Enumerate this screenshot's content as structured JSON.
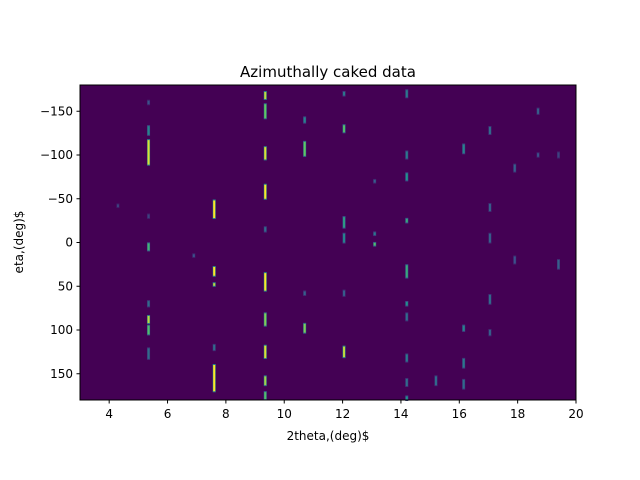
{
  "chart_data": {
    "type": "heatmap",
    "title": "Azimuthally caked data",
    "xlabel": "2theta,(deg)$",
    "ylabel": "eta,(deg)$",
    "xlim": [
      3,
      20
    ],
    "ylim": [
      180,
      -180
    ],
    "xticks": [
      4,
      6,
      8,
      10,
      12,
      14,
      16,
      18,
      20
    ],
    "yticks": [
      -150,
      -100,
      -50,
      0,
      50,
      100,
      150
    ],
    "ytick_labels": [
      "−150",
      "−100",
      "−50",
      "0",
      "50",
      "100",
      "150"
    ],
    "colormap": "viridis",
    "background_color": "#440154",
    "grid": false,
    "spots": [
      {
        "x": 5.35,
        "y": -103,
        "h": 28,
        "v": 0.95
      },
      {
        "x": 5.35,
        "y": -128,
        "h": 10,
        "v": 0.45
      },
      {
        "x": 5.35,
        "y": -160,
        "h": 4,
        "v": 0.25
      },
      {
        "x": 5.35,
        "y": -30,
        "h": 4,
        "v": 0.2
      },
      {
        "x": 5.35,
        "y": 5,
        "h": 8,
        "v": 0.65
      },
      {
        "x": 5.35,
        "y": 70,
        "h": 6,
        "v": 0.35
      },
      {
        "x": 5.35,
        "y": 88,
        "h": 8,
        "v": 0.9
      },
      {
        "x": 5.35,
        "y": 100,
        "h": 10,
        "v": 0.7
      },
      {
        "x": 5.35,
        "y": 127,
        "h": 12,
        "v": 0.35
      },
      {
        "x": 4.3,
        "y": -42,
        "h": 3,
        "v": 0.2
      },
      {
        "x": 6.9,
        "y": 15,
        "h": 3,
        "v": 0.25
      },
      {
        "x": 7.6,
        "y": -38,
        "h": 20,
        "v": 1.0
      },
      {
        "x": 7.6,
        "y": 33,
        "h": 10,
        "v": 1.0
      },
      {
        "x": 7.6,
        "y": 48,
        "h": 3,
        "v": 0.9
      },
      {
        "x": 7.6,
        "y": 155,
        "h": 30,
        "v": 1.0
      },
      {
        "x": 7.6,
        "y": 120,
        "h": 6,
        "v": 0.35
      },
      {
        "x": 9.35,
        "y": -168,
        "h": 8,
        "v": 0.9
      },
      {
        "x": 9.35,
        "y": -150,
        "h": 16,
        "v": 0.75
      },
      {
        "x": 9.35,
        "y": -102,
        "h": 14,
        "v": 0.95
      },
      {
        "x": 9.35,
        "y": -58,
        "h": 16,
        "v": 1.0
      },
      {
        "x": 9.35,
        "y": -15,
        "h": 5,
        "v": 0.35
      },
      {
        "x": 9.35,
        "y": 45,
        "h": 20,
        "v": 1.0
      },
      {
        "x": 9.35,
        "y": 88,
        "h": 14,
        "v": 0.8
      },
      {
        "x": 9.35,
        "y": 125,
        "h": 14,
        "v": 0.95
      },
      {
        "x": 9.35,
        "y": 158,
        "h": 10,
        "v": 0.85
      },
      {
        "x": 9.35,
        "y": 175,
        "h": 8,
        "v": 0.7
      },
      {
        "x": 10.7,
        "y": -140,
        "h": 6,
        "v": 0.45
      },
      {
        "x": 10.7,
        "y": -107,
        "h": 16,
        "v": 0.75
      },
      {
        "x": 10.7,
        "y": 98,
        "h": 10,
        "v": 0.8
      },
      {
        "x": 10.7,
        "y": 58,
        "h": 4,
        "v": 0.3
      },
      {
        "x": 12.05,
        "y": -170,
        "h": 4,
        "v": 0.4
      },
      {
        "x": 12.05,
        "y": -130,
        "h": 8,
        "v": 0.7
      },
      {
        "x": 12.05,
        "y": -23,
        "h": 12,
        "v": 0.55
      },
      {
        "x": 12.05,
        "y": -5,
        "h": 10,
        "v": 0.45
      },
      {
        "x": 12.05,
        "y": 58,
        "h": 6,
        "v": 0.3
      },
      {
        "x": 12.05,
        "y": 125,
        "h": 12,
        "v": 0.9
      },
      {
        "x": 13.1,
        "y": -70,
        "h": 3,
        "v": 0.3
      },
      {
        "x": 13.1,
        "y": -10,
        "h": 3,
        "v": 0.4
      },
      {
        "x": 13.1,
        "y": 2,
        "h": 3,
        "v": 0.7
      },
      {
        "x": 14.2,
        "y": -170,
        "h": 8,
        "v": 0.4
      },
      {
        "x": 14.2,
        "y": -100,
        "h": 8,
        "v": 0.4
      },
      {
        "x": 14.2,
        "y": -75,
        "h": 8,
        "v": 0.5
      },
      {
        "x": 14.2,
        "y": -25,
        "h": 4,
        "v": 0.6
      },
      {
        "x": 14.2,
        "y": 33,
        "h": 14,
        "v": 0.6
      },
      {
        "x": 14.2,
        "y": 70,
        "h": 4,
        "v": 0.5
      },
      {
        "x": 14.2,
        "y": 85,
        "h": 8,
        "v": 0.35
      },
      {
        "x": 14.2,
        "y": 132,
        "h": 8,
        "v": 0.4
      },
      {
        "x": 14.2,
        "y": 160,
        "h": 8,
        "v": 0.35
      },
      {
        "x": 14.2,
        "y": 178,
        "h": 4,
        "v": 0.5
      },
      {
        "x": 15.2,
        "y": 158,
        "h": 10,
        "v": 0.35
      },
      {
        "x": 16.15,
        "y": -107,
        "h": 10,
        "v": 0.45
      },
      {
        "x": 16.15,
        "y": 98,
        "h": 6,
        "v": 0.45
      },
      {
        "x": 16.15,
        "y": 138,
        "h": 10,
        "v": 0.4
      },
      {
        "x": 16.15,
        "y": 162,
        "h": 10,
        "v": 0.35
      },
      {
        "x": 17.05,
        "y": -128,
        "h": 8,
        "v": 0.35
      },
      {
        "x": 17.05,
        "y": -40,
        "h": 8,
        "v": 0.3
      },
      {
        "x": 17.05,
        "y": -5,
        "h": 10,
        "v": 0.3
      },
      {
        "x": 17.05,
        "y": 65,
        "h": 10,
        "v": 0.35
      },
      {
        "x": 17.05,
        "y": 103,
        "h": 6,
        "v": 0.3
      },
      {
        "x": 17.9,
        "y": -85,
        "h": 8,
        "v": 0.3
      },
      {
        "x": 17.9,
        "y": 20,
        "h": 8,
        "v": 0.25
      },
      {
        "x": 18.7,
        "y": -150,
        "h": 6,
        "v": 0.3
      },
      {
        "x": 18.7,
        "y": -100,
        "h": 4,
        "v": 0.25
      },
      {
        "x": 19.4,
        "y": 25,
        "h": 10,
        "v": 0.3
      },
      {
        "x": 19.4,
        "y": -100,
        "h": 6,
        "v": 0.2
      }
    ]
  }
}
